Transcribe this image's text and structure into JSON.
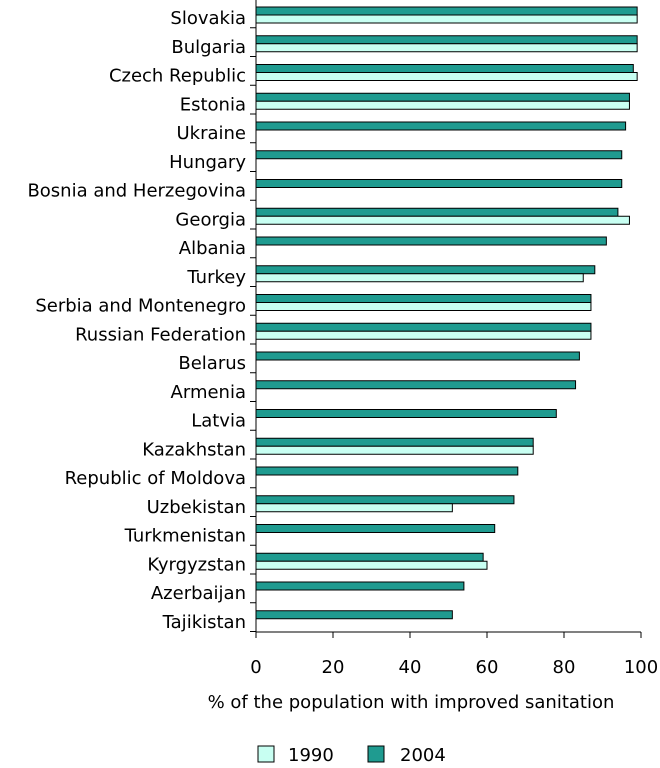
{
  "chart_data": {
    "type": "bar",
    "orientation": "horizontal",
    "categories": [
      "Slovakia",
      "Bulgaria",
      "Czech Republic",
      "Estonia",
      "Ukraine",
      "Hungary",
      "Bosnia and Herzegovina",
      "Georgia",
      "Albania",
      "Turkey",
      "Serbia and Montenegro",
      "Russian Federation",
      "Belarus",
      "Armenia",
      "Latvia",
      "Kazakhstan",
      "Republic of Moldova",
      "Uzbekistan",
      "Turkmenistan",
      "Kyrgyzstan",
      "Azerbaijan",
      "Tajikistan"
    ],
    "series": [
      {
        "name": "2004",
        "color": "#1f9b90",
        "values": [
          99,
          99,
          98,
          97,
          96,
          95,
          95,
          94,
          91,
          88,
          87,
          87,
          84,
          83,
          78,
          72,
          68,
          67,
          62,
          59,
          54,
          51
        ]
      },
      {
        "name": "1990",
        "color": "#c8fff2",
        "values": [
          99,
          99,
          99,
          97,
          null,
          null,
          null,
          97,
          null,
          85,
          87,
          87,
          null,
          null,
          null,
          72,
          null,
          51,
          null,
          60,
          null,
          null
        ]
      }
    ],
    "xlabel": "% of the population with improved sanitation",
    "xlim": [
      0,
      100
    ],
    "xticks": [
      0,
      20,
      40,
      60,
      80,
      100
    ],
    "grid": false,
    "legend_position": "bottom"
  },
  "legend": [
    {
      "label": "1990",
      "color": "#c8fff2"
    },
    {
      "label": "2004",
      "color": "#1f9b90"
    }
  ]
}
